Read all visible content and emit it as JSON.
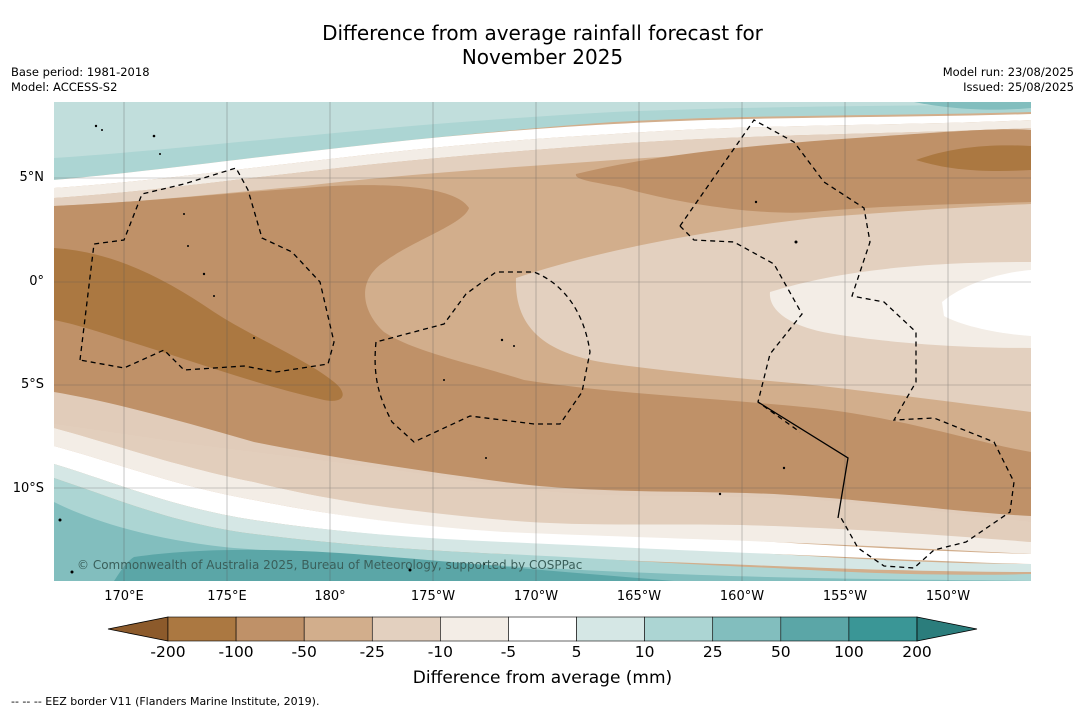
{
  "title_line1": "Difference from average rainfall forecast for",
  "title_line2": "November 2025",
  "left_meta": {
    "base_period": "Base period: 1981-2018",
    "model": "Model: ACCESS-S2"
  },
  "right_meta": {
    "model_run": "Model run: 23/08/2025",
    "issued": "Issued: 25/08/2025"
  },
  "copyright": "© Commonwealth of Australia 2025, Bureau of Meteorology, supported by COSPPac",
  "lat_labels": [
    "5°N",
    "0°",
    "5°S",
    "10°S"
  ],
  "lon_labels": [
    "170°E",
    "175°E",
    "180°",
    "175°W",
    "170°W",
    "165°W",
    "160°W",
    "155°W",
    "150°W"
  ],
  "colorbar": {
    "ticks": [
      "-200",
      "-100",
      "-50",
      "-25",
      "-10",
      "-5",
      "5",
      "10",
      "25",
      "50",
      "100",
      "200"
    ],
    "colors": [
      "#8c5a2b",
      "#ab7841",
      "#bf9168",
      "#d2ae8c",
      "#e3d0bf",
      "#f3ede6",
      "#ffffff",
      "#d5e7e5",
      "#acd5d3",
      "#82bebe",
      "#5ba6a7",
      "#3a9696",
      "#2b7d7c"
    ],
    "label": "Difference from average (mm)"
  },
  "footer": "--  --  -- EEZ border V11 (Flanders Marine Institute, 2019)."
}
